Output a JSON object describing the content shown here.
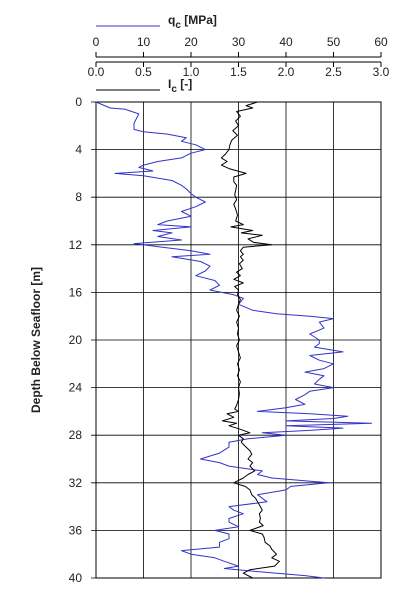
{
  "chart_data": {
    "type": "line",
    "ylabel": "Depth Below Seafloor [m]",
    "ylim": [
      0,
      40
    ],
    "y_inverted": true,
    "y_ticks": [
      "0",
      "4",
      "8",
      "12",
      "16",
      "20",
      "24",
      "28",
      "32",
      "36",
      "40"
    ],
    "grid": true,
    "legend": "top, stacked above plot",
    "axes_top": [
      {
        "id": "qc",
        "label_main": "q",
        "label_sub": "c",
        "label_unit": " [MPa]",
        "range": [
          0,
          60
        ],
        "ticks": [
          "0",
          "10",
          "20",
          "30",
          "40",
          "50",
          "60"
        ]
      },
      {
        "id": "ic",
        "label_main": "I",
        "label_sub": "c",
        "label_unit": " [-]",
        "range": [
          0,
          3
        ],
        "ticks": [
          "0.0",
          "0.5",
          "1.0",
          "1.5",
          "2.0",
          "2.5",
          "3.0"
        ]
      }
    ],
    "series": [
      {
        "axis": "qc",
        "color": "#3333cc",
        "points": [
          [
            0,
            0
          ],
          [
            0.5,
            3
          ],
          [
            0.6,
            6
          ],
          [
            1.0,
            9
          ],
          [
            1.8,
            8
          ],
          [
            2.3,
            8
          ],
          [
            2.5,
            10
          ],
          [
            2.7,
            15
          ],
          [
            3.0,
            19
          ],
          [
            3.3,
            18
          ],
          [
            3.6,
            21
          ],
          [
            4.0,
            23
          ],
          [
            4.3,
            20
          ],
          [
            4.7,
            18
          ],
          [
            5.0,
            13
          ],
          [
            5.3,
            10
          ],
          [
            5.5,
            9
          ],
          [
            5.8,
            12
          ],
          [
            6.0,
            4
          ],
          [
            6.2,
            10
          ],
          [
            6.6,
            16
          ],
          [
            7.0,
            18
          ],
          [
            7.3,
            19
          ],
          [
            7.7,
            20
          ],
          [
            8.0,
            21
          ],
          [
            8.4,
            23
          ],
          [
            8.8,
            21
          ],
          [
            9.2,
            18
          ],
          [
            9.6,
            20
          ],
          [
            10.0,
            15
          ],
          [
            10.3,
            13
          ],
          [
            10.5,
            20
          ],
          [
            10.8,
            12
          ],
          [
            11.0,
            16
          ],
          [
            11.3,
            13
          ],
          [
            11.6,
            18
          ],
          [
            11.9,
            8
          ],
          [
            12.2,
            14
          ],
          [
            12.5,
            20
          ],
          [
            12.8,
            24
          ],
          [
            13.0,
            16
          ],
          [
            13.4,
            22
          ],
          [
            13.8,
            24
          ],
          [
            14.2,
            23
          ],
          [
            14.6,
            21
          ],
          [
            15.0,
            25
          ],
          [
            15.4,
            26
          ],
          [
            15.8,
            24
          ],
          [
            16.2,
            29
          ],
          [
            16.5,
            31
          ],
          [
            17.0,
            30
          ],
          [
            17.5,
            33
          ],
          [
            17.8,
            38
          ],
          [
            18.0,
            45
          ],
          [
            18.2,
            50
          ],
          [
            18.5,
            47
          ],
          [
            19.0,
            48
          ],
          [
            19.5,
            45
          ],
          [
            20.0,
            47
          ],
          [
            20.3,
            47
          ],
          [
            20.6,
            46
          ],
          [
            21.0,
            52
          ],
          [
            21.3,
            45
          ],
          [
            21.7,
            47
          ],
          [
            22.0,
            50
          ],
          [
            22.4,
            48
          ],
          [
            22.7,
            44
          ],
          [
            23.0,
            48
          ],
          [
            23.3,
            47
          ],
          [
            23.7,
            46
          ],
          [
            24.0,
            50
          ],
          [
            24.3,
            45
          ],
          [
            24.6,
            44
          ],
          [
            25.0,
            42
          ],
          [
            25.4,
            44
          ],
          [
            25.7,
            40
          ],
          [
            26.0,
            34
          ],
          [
            26.2,
            45
          ],
          [
            26.4,
            53
          ],
          [
            26.6,
            50
          ],
          [
            26.8,
            40
          ],
          [
            27.0,
            58
          ],
          [
            27.2,
            40
          ],
          [
            27.4,
            52
          ],
          [
            27.6,
            45
          ],
          [
            27.8,
            35
          ],
          [
            28.0,
            40
          ],
          [
            28.3,
            32
          ],
          [
            28.6,
            28
          ],
          [
            29.0,
            28
          ],
          [
            29.5,
            26
          ],
          [
            30.0,
            22
          ],
          [
            30.3,
            26
          ],
          [
            30.6,
            28
          ],
          [
            31.0,
            35
          ],
          [
            31.3,
            34
          ],
          [
            31.6,
            37
          ],
          [
            32.0,
            49
          ],
          [
            32.3,
            41
          ],
          [
            32.6,
            40
          ],
          [
            33.0,
            34
          ],
          [
            33.3,
            35
          ],
          [
            33.6,
            36
          ],
          [
            34.0,
            28
          ],
          [
            34.3,
            29
          ],
          [
            34.6,
            31
          ],
          [
            35.0,
            28
          ],
          [
            35.3,
            28
          ],
          [
            35.7,
            30
          ],
          [
            36.0,
            25
          ],
          [
            36.3,
            28
          ],
          [
            36.7,
            28
          ],
          [
            37.0,
            26
          ],
          [
            37.4,
            26
          ],
          [
            37.7,
            18
          ],
          [
            38.0,
            20
          ],
          [
            38.3,
            25
          ],
          [
            38.6,
            27
          ],
          [
            39.0,
            30
          ],
          [
            39.2,
            27
          ],
          [
            39.5,
            35
          ],
          [
            39.8,
            44
          ],
          [
            40.0,
            48
          ]
        ]
      },
      {
        "axis": "ic",
        "color": "#000000",
        "points": [
          [
            0,
            1.7
          ],
          [
            0.3,
            1.58
          ],
          [
            0.5,
            1.65
          ],
          [
            0.8,
            1.48
          ],
          [
            1.2,
            1.52
          ],
          [
            1.6,
            1.47
          ],
          [
            2.0,
            1.5
          ],
          [
            2.4,
            1.44
          ],
          [
            2.8,
            1.49
          ],
          [
            3.2,
            1.43
          ],
          [
            3.6,
            1.41
          ],
          [
            4.0,
            1.4
          ],
          [
            4.4,
            1.36
          ],
          [
            4.7,
            1.32
          ],
          [
            5.0,
            1.38
          ],
          [
            5.3,
            1.32
          ],
          [
            5.6,
            1.4
          ],
          [
            6.0,
            1.58
          ],
          [
            6.3,
            1.45
          ],
          [
            6.7,
            1.45
          ],
          [
            7.0,
            1.48
          ],
          [
            7.4,
            1.47
          ],
          [
            7.8,
            1.46
          ],
          [
            8.2,
            1.48
          ],
          [
            8.6,
            1.45
          ],
          [
            9.0,
            1.47
          ],
          [
            9.5,
            1.49
          ],
          [
            10.0,
            1.47
          ],
          [
            10.3,
            1.55
          ],
          [
            10.5,
            1.42
          ],
          [
            10.8,
            1.65
          ],
          [
            11.0,
            1.53
          ],
          [
            11.2,
            1.75
          ],
          [
            11.5,
            1.6
          ],
          [
            11.8,
            1.66
          ],
          [
            12.0,
            1.85
          ],
          [
            12.2,
            1.55
          ],
          [
            12.5,
            1.52
          ],
          [
            12.8,
            1.55
          ],
          [
            13.0,
            1.52
          ],
          [
            13.3,
            1.55
          ],
          [
            13.6,
            1.51
          ],
          [
            14.0,
            1.54
          ],
          [
            14.3,
            1.48
          ],
          [
            14.6,
            1.52
          ],
          [
            14.9,
            1.45
          ],
          [
            15.2,
            1.55
          ],
          [
            15.5,
            1.46
          ],
          [
            15.8,
            1.5
          ],
          [
            16.2,
            1.49
          ],
          [
            16.6,
            1.52
          ],
          [
            17.0,
            1.5
          ],
          [
            17.5,
            1.48
          ],
          [
            18.0,
            1.51
          ],
          [
            18.5,
            1.48
          ],
          [
            19.0,
            1.5
          ],
          [
            19.5,
            1.49
          ],
          [
            20.0,
            1.51
          ],
          [
            20.5,
            1.48
          ],
          [
            21.0,
            1.5
          ],
          [
            21.5,
            1.52
          ],
          [
            22.0,
            1.49
          ],
          [
            22.5,
            1.51
          ],
          [
            23.0,
            1.49
          ],
          [
            23.5,
            1.52
          ],
          [
            24.0,
            1.5
          ],
          [
            24.5,
            1.51
          ],
          [
            25.0,
            1.5
          ],
          [
            25.5,
            1.48
          ],
          [
            25.8,
            1.46
          ],
          [
            26.0,
            1.5
          ],
          [
            26.2,
            1.38
          ],
          [
            26.5,
            1.45
          ],
          [
            26.8,
            1.33
          ],
          [
            27.0,
            1.48
          ],
          [
            27.2,
            1.4
          ],
          [
            27.5,
            1.52
          ],
          [
            27.8,
            1.62
          ],
          [
            28.0,
            1.5
          ],
          [
            28.3,
            1.55
          ],
          [
            28.6,
            1.53
          ],
          [
            29.0,
            1.58
          ],
          [
            29.3,
            1.62
          ],
          [
            29.6,
            1.64
          ],
          [
            30.0,
            1.6
          ],
          [
            30.3,
            1.65
          ],
          [
            30.6,
            1.62
          ],
          [
            31.0,
            1.67
          ],
          [
            31.3,
            1.6
          ],
          [
            31.6,
            1.55
          ],
          [
            32.0,
            1.45
          ],
          [
            32.3,
            1.57
          ],
          [
            32.6,
            1.62
          ],
          [
            33.0,
            1.64
          ],
          [
            33.3,
            1.68
          ],
          [
            33.6,
            1.7
          ],
          [
            34.0,
            1.73
          ],
          [
            34.3,
            1.75
          ],
          [
            34.6,
            1.72
          ],
          [
            35.0,
            1.73
          ],
          [
            35.3,
            1.72
          ],
          [
            35.6,
            1.76
          ],
          [
            36.0,
            1.62
          ],
          [
            36.3,
            1.75
          ],
          [
            36.6,
            1.77
          ],
          [
            37.0,
            1.78
          ],
          [
            37.3,
            1.83
          ],
          [
            37.6,
            1.85
          ],
          [
            38.0,
            1.9
          ],
          [
            38.3,
            1.85
          ],
          [
            38.6,
            1.93
          ],
          [
            39.0,
            1.88
          ],
          [
            39.3,
            1.62
          ],
          [
            39.6,
            1.55
          ],
          [
            40.0,
            1.65
          ]
        ]
      }
    ]
  }
}
